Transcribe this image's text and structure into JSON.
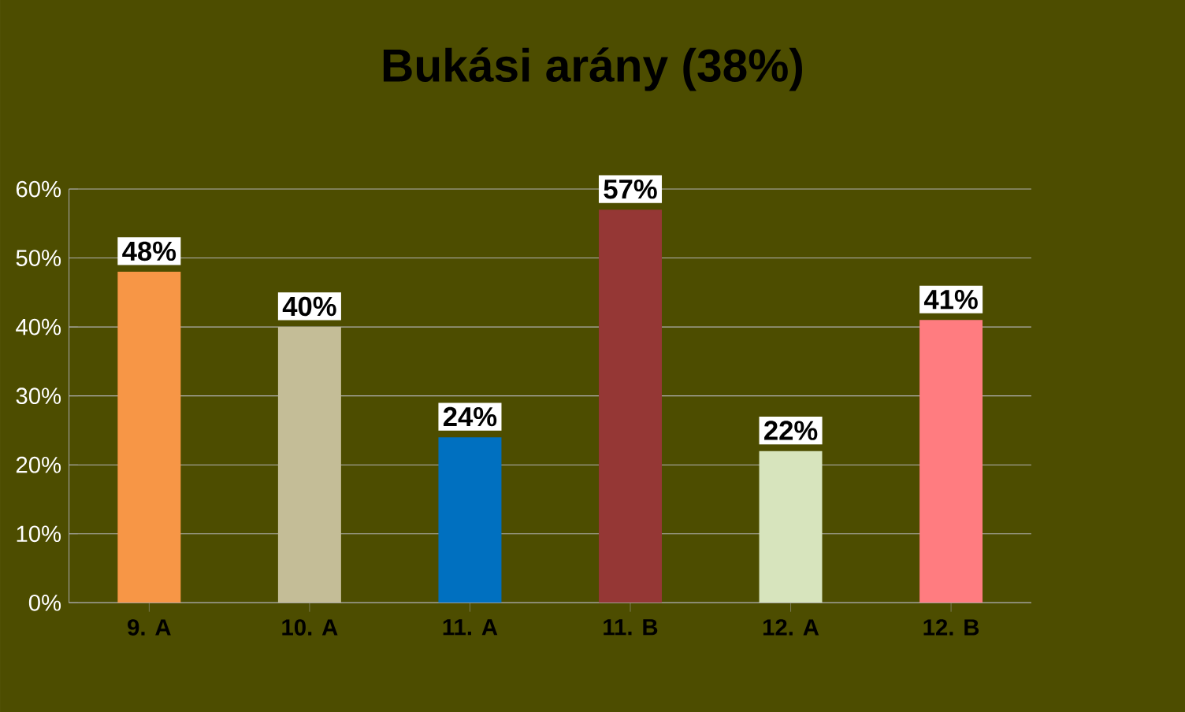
{
  "chart_data": {
    "type": "bar",
    "title": "Bukási arány (38%)",
    "categories": [
      "9. A",
      "10. A",
      "11. A",
      "11. B",
      "12. A",
      "12. B"
    ],
    "values": [
      48,
      40,
      24,
      57,
      22,
      41
    ],
    "colors": [
      "#f79646",
      "#c4bd97",
      "#0070c0",
      "#953735",
      "#d7e4bd",
      "#ff7c80"
    ],
    "value_labels": [
      "48%",
      "40%",
      "24%",
      "57%",
      "22%",
      "41%"
    ],
    "ylim": [
      0,
      60
    ],
    "yticks": [
      {
        "value": 0,
        "label": "0%"
      },
      {
        "value": 10,
        "label": "10%"
      },
      {
        "value": 20,
        "label": "20%"
      },
      {
        "value": 30,
        "label": "30%"
      },
      {
        "value": 40,
        "label": "40%"
      },
      {
        "value": 50,
        "label": "50%"
      },
      {
        "value": 60,
        "label": "60%"
      }
    ],
    "grid": "y"
  }
}
